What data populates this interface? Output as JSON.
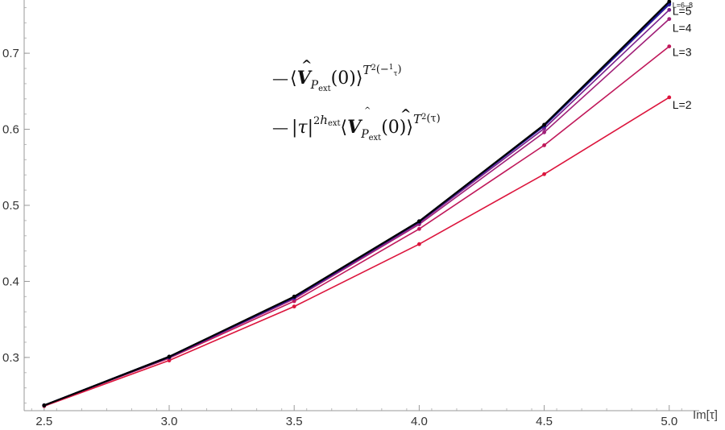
{
  "chart_data": {
    "type": "line",
    "xlabel": "Im[τ]",
    "xlim": [
      2.42,
      5.12
    ],
    "ylim": [
      0.23,
      0.77
    ],
    "x_ticks": [
      2.5,
      3.0,
      3.5,
      4.0,
      4.5,
      5.0
    ],
    "x_tick_labels": [
      "2.5",
      "3.0",
      "3.5",
      "4.0",
      "4.5",
      "5.0"
    ],
    "y_ticks": [
      0.3,
      0.4,
      0.5,
      0.6,
      0.7
    ],
    "y_tick_labels": [
      "0.3",
      "0.4",
      "0.5",
      "0.6",
      "0.7"
    ],
    "x": [
      2.5,
      3.0,
      3.5,
      4.0,
      4.5,
      5.0
    ],
    "series": [
      {
        "name": "L=2",
        "color": "#dc143c",
        "values": [
          0.236,
          0.296,
          0.367,
          0.449,
          0.541,
          0.642
        ]
      },
      {
        "name": "L=3",
        "color": "#c0185a",
        "values": [
          0.237,
          0.299,
          0.374,
          0.469,
          0.579,
          0.709
        ]
      },
      {
        "name": "L=4",
        "color": "#a01f78",
        "values": [
          0.237,
          0.3,
          0.377,
          0.475,
          0.596,
          0.745
        ]
      },
      {
        "name": "L=5",
        "color": "#7a1f8c",
        "values": [
          0.237,
          0.3,
          0.378,
          0.477,
          0.601,
          0.757
        ]
      },
      {
        "name": "L=6–8",
        "color": "#3a2090",
        "values": [
          0.237,
          0.3,
          0.379,
          0.478,
          0.604,
          0.764
        ]
      },
      {
        "color": "#1a1aa0",
        "values": [
          0.237,
          0.301,
          0.379,
          0.479,
          0.605,
          0.766
        ]
      },
      {
        "color": "#000000",
        "values": [
          0.237,
          0.301,
          0.38,
          0.479,
          0.606,
          0.768
        ]
      }
    ],
    "legend": {
      "placement": "top-center",
      "entries": [
        {
          "color": "#1a1aa0",
          "marker": "—",
          "parts": [
            "⟨",
            "V",
            "P",
            "ext",
            "(0)⟩",
            "T",
            "2",
            "(−",
            "1",
            "τ",
            ")"
          ]
        },
        {
          "color": "#000000",
          "marker": "—",
          "parts": [
            "|τ|",
            "2",
            "h",
            "ext",
            "⟨",
            "V",
            "P",
            "ext",
            "(0)⟩",
            "T",
            "2",
            "(τ)"
          ]
        }
      ]
    }
  }
}
